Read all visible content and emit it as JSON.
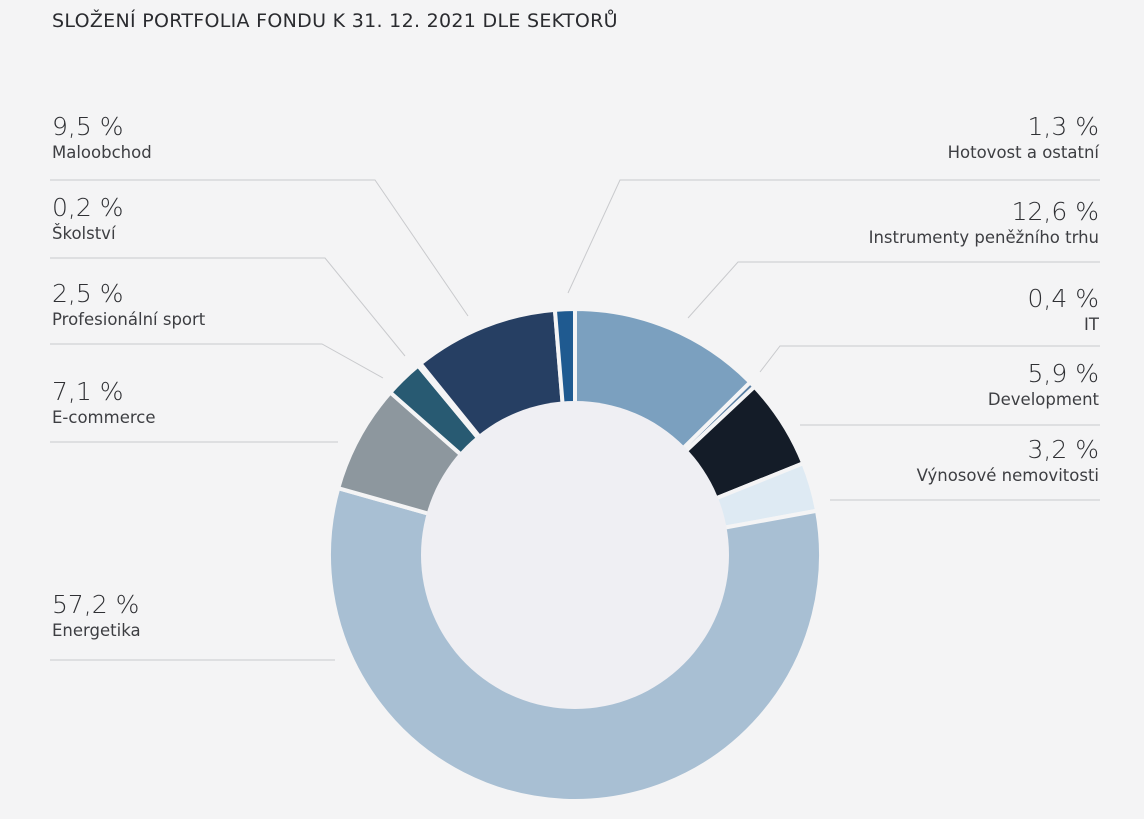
{
  "chart_data": {
    "type": "pie",
    "donut": true,
    "title": "SLOŽENÍ PORTFOLIA FONDU K 31. 12. 2021 DLE SEKTORŮ",
    "direction": "clockwise from top",
    "slices": [
      {
        "label": "Instrumenty peněžního trhu",
        "value": 12.6,
        "value_label": "12,6 %",
        "color": "#7ba0bf"
      },
      {
        "label": "IT",
        "value": 0.4,
        "value_label": "0,4 %",
        "color": "#5a7fa3"
      },
      {
        "label": "Development",
        "value": 5.9,
        "value_label": "5,9 %",
        "color": "#141c28"
      },
      {
        "label": "Výnosové nemovitosti",
        "value": 3.2,
        "value_label": "3,2 %",
        "color": "#deeaf3"
      },
      {
        "label": "Energetika",
        "value": 57.2,
        "value_label": "57,2 %",
        "color": "#a8bfd3"
      },
      {
        "label": "E-commerce",
        "value": 7.1,
        "value_label": "7,1 %",
        "color": "#8d979e"
      },
      {
        "label": "Profesionální sport",
        "value": 2.5,
        "value_label": "2,5 %",
        "color": "#285a72"
      },
      {
        "label": "Školství",
        "value": 0.2,
        "value_label": "0,2 %",
        "color": "#3a5f80"
      },
      {
        "label": "Maloobchod",
        "value": 9.5,
        "value_label": "9,5 %",
        "color": "#263f63"
      },
      {
        "label": "Hotovost a ostatní",
        "value": 1.3,
        "value_label": "1,3 %",
        "color": "#1f5a90"
      }
    ]
  }
}
